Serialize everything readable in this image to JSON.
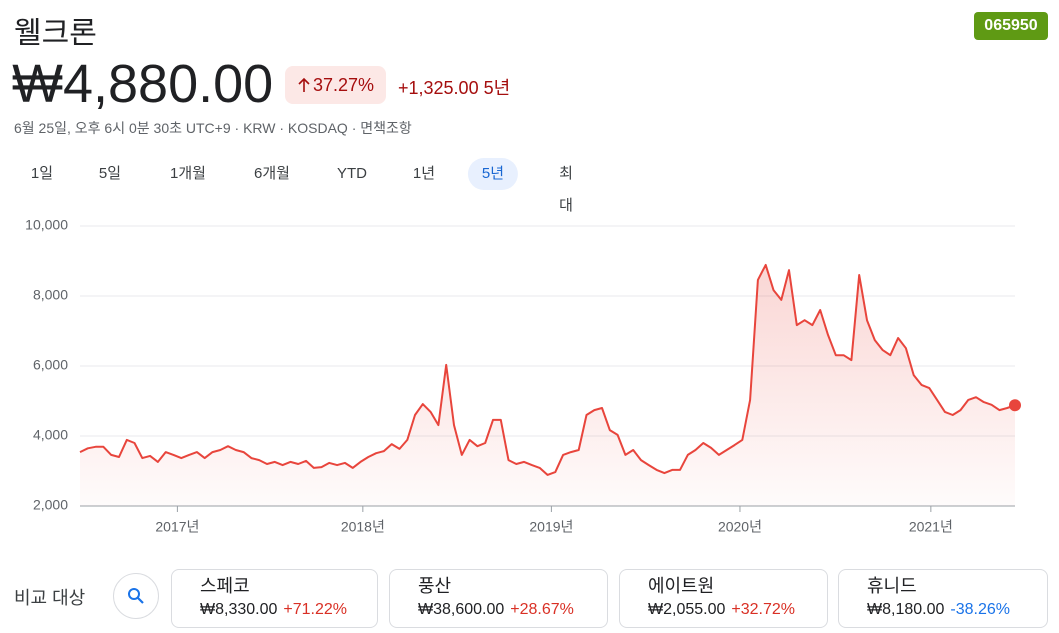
{
  "header": {
    "title": "웰크론",
    "ticker": "065950",
    "price": "₩4,880.00",
    "change_percent": "37.27%",
    "change": "+1,325.00",
    "period": "5년",
    "meta": "6월 25일, 오후 6시 0분 30초 UTC+9 · KRW · KOSDAQ · 면책조항"
  },
  "tabs": [
    "1일",
    "5일",
    "1개월",
    "6개월",
    "YTD",
    "1년",
    "5년",
    "최대"
  ],
  "selected_tab": 6,
  "chart_data": {
    "type": "line",
    "color": "#e8453c",
    "values": [
      3540,
      3650,
      3690,
      3690,
      3460,
      3400,
      3890,
      3800,
      3370,
      3430,
      3260,
      3540,
      3460,
      3370,
      3460,
      3540,
      3370,
      3540,
      3600,
      3710,
      3600,
      3540,
      3370,
      3310,
      3200,
      3260,
      3170,
      3260,
      3200,
      3290,
      3090,
      3110,
      3230,
      3170,
      3230,
      3090,
      3260,
      3400,
      3510,
      3570,
      3770,
      3630,
      3890,
      4600,
      4910,
      4690,
      4310,
      6030,
      4310,
      3460,
      3890,
      3710,
      3800,
      4460,
      4460,
      3310,
      3200,
      3260,
      3170,
      3090,
      2890,
      2970,
      3460,
      3540,
      3600,
      4600,
      4740,
      4800,
      4170,
      4030,
      3460,
      3600,
      3310,
      3170,
      3030,
      2940,
      3030,
      3030,
      3460,
      3600,
      3800,
      3660,
      3460,
      3600,
      3740,
      3890,
      5030,
      8460,
      8890,
      8170,
      7890,
      8740,
      7170,
      7310,
      7170,
      7600,
      6890,
      6310,
      6310,
      6170,
      8600,
      7310,
      6740,
      6460,
      6310,
      6800,
      6510,
      5740,
      5460,
      5370,
      5030,
      4690,
      4600,
      4740,
      5030,
      5110,
      4970,
      4890,
      4740,
      4800,
      4880
    ],
    "xlim": [
      0,
      120
    ],
    "xticks": [
      {
        "value": 12.5,
        "label": "2017년"
      },
      {
        "value": 36.3,
        "label": "2018년"
      },
      {
        "value": 60.5,
        "label": "2019년"
      },
      {
        "value": 84.7,
        "label": "2020년"
      },
      {
        "value": 109.2,
        "label": "2021년"
      }
    ],
    "ylim": [
      2000,
      10000
    ],
    "yticks": [
      {
        "value": 2000,
        "label": "2,000"
      },
      {
        "value": 4000,
        "label": "4,000"
      },
      {
        "value": 6000,
        "label": "6,000"
      },
      {
        "value": 8000,
        "label": "8,000"
      },
      {
        "value": 10000,
        "label": "10,000"
      }
    ],
    "grid": true
  },
  "compare": {
    "label": "비교 대상",
    "items": [
      {
        "name": "스페코",
        "price": "₩8,330.00",
        "change": "+71.22%",
        "color": "#d93025"
      },
      {
        "name": "풍산",
        "price": "₩38,600.00",
        "change": "+28.67%",
        "color": "#d93025"
      },
      {
        "name": "에이트원",
        "price": "₩2,055.00",
        "change": "+32.72%",
        "color": "#d93025"
      },
      {
        "name": "휴니드",
        "price": "₩8,180.00",
        "change": "-38.26%",
        "color": "#1a73e8"
      }
    ]
  }
}
